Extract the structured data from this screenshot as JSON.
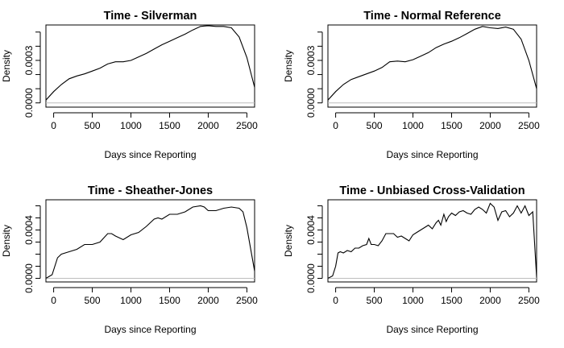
{
  "chart_data": [
    {
      "type": "line",
      "title": "Time - Silverman",
      "xlabel": "Days since Reporting",
      "ylabel": "Density",
      "xlim": [
        -100,
        2600
      ],
      "ylim": [
        -3e-05,
        0.00055
      ],
      "x_ticks": [
        0,
        500,
        1000,
        1500,
        2000,
        2500
      ],
      "y_ticks": [
        0,
        0.0001,
        0.0002,
        0.0003,
        0.0004,
        0.0005
      ],
      "y_tick_labels": [
        "0.0000",
        "",
        "",
        "0.0003",
        "",
        ""
      ],
      "series": [
        {
          "x": [
            -100,
            0,
            100,
            200,
            300,
            400,
            500,
            600,
            700,
            800,
            900,
            1000,
            1100,
            1200,
            1300,
            1400,
            1500,
            1600,
            1700,
            1800,
            1900,
            2000,
            2100,
            2200,
            2300,
            2400,
            2500,
            2600
          ],
          "y": [
            2e-05,
            8e-05,
            0.00013,
            0.00017,
            0.00019,
            0.000205,
            0.000225,
            0.000245,
            0.000275,
            0.00029,
            0.00029,
            0.0003,
            0.000325,
            0.00035,
            0.00038,
            0.00041,
            0.000435,
            0.00046,
            0.000485,
            0.000515,
            0.00054,
            0.000545,
            0.00054,
            0.00054,
            0.00053,
            0.000465,
            0.00032,
            0.00011
          ]
        }
      ]
    },
    {
      "type": "line",
      "title": "Time - Normal Reference",
      "xlabel": "Days since Reporting",
      "ylabel": "Density",
      "xlim": [
        -100,
        2600
      ],
      "ylim": [
        -3e-05,
        0.00055
      ],
      "x_ticks": [
        0,
        500,
        1000,
        1500,
        2000,
        2500
      ],
      "y_ticks": [
        0,
        0.0001,
        0.0002,
        0.0003,
        0.0004,
        0.0005
      ],
      "y_tick_labels": [
        "0.0000",
        "",
        "",
        "0.0003",
        "",
        ""
      ],
      "series": [
        {
          "x": [
            -100,
            0,
            100,
            200,
            300,
            400,
            500,
            600,
            700,
            800,
            900,
            1000,
            1100,
            1200,
            1300,
            1400,
            1500,
            1600,
            1700,
            1800,
            1900,
            2000,
            2100,
            2200,
            2300,
            2400,
            2500,
            2600
          ],
          "y": [
            2e-05,
            8e-05,
            0.00013,
            0.000165,
            0.000185,
            0.000205,
            0.000225,
            0.00025,
            0.00029,
            0.000295,
            0.00029,
            0.000305,
            0.00033,
            0.000355,
            0.00039,
            0.000415,
            0.000435,
            0.00046,
            0.00049,
            0.00052,
            0.00054,
            0.00053,
            0.000525,
            0.000535,
            0.00052,
            0.00045,
            0.0003,
            0.0001
          ]
        }
      ]
    },
    {
      "type": "line",
      "title": "Time - Sheather-Jones",
      "xlabel": "Days since Reporting",
      "ylabel": "Density",
      "xlim": [
        -100,
        2600
      ],
      "ylim": [
        -3e-05,
        0.00065
      ],
      "x_ticks": [
        0,
        500,
        1000,
        1500,
        2000,
        2500
      ],
      "y_ticks": [
        0,
        0.0001,
        0.0002,
        0.0003,
        0.0004,
        0.0005,
        0.0006
      ],
      "y_tick_labels": [
        "0.0000",
        "",
        "",
        "",
        "0.0004",
        "",
        ""
      ],
      "series": [
        {
          "x": [
            -100,
            -20,
            50,
            100,
            200,
            300,
            400,
            500,
            600,
            700,
            750,
            800,
            900,
            1000,
            1100,
            1200,
            1300,
            1350,
            1400,
            1500,
            1600,
            1700,
            1800,
            1900,
            1950,
            2000,
            2100,
            2200,
            2300,
            2400,
            2450,
            2500,
            2600
          ],
          "y": [
            0,
            3e-05,
            0.00017,
            0.0002,
            0.00022,
            0.00024,
            0.00028,
            0.00028,
            0.0003,
            0.00037,
            0.00037,
            0.00035,
            0.00032,
            0.00036,
            0.00038,
            0.00043,
            0.00049,
            0.0005,
            0.00049,
            0.00053,
            0.00053,
            0.00055,
            0.00059,
            0.0006,
            0.00059,
            0.00056,
            0.00056,
            0.00058,
            0.00059,
            0.00058,
            0.00055,
            0.00042,
            6e-05
          ]
        }
      ]
    },
    {
      "type": "line",
      "title": "Time - Unbiased Cross-Validation",
      "xlabel": "Days since Reporting",
      "ylabel": "Density",
      "xlim": [
        -100,
        2600
      ],
      "ylim": [
        -3e-05,
        0.00065
      ],
      "x_ticks": [
        0,
        500,
        1000,
        1500,
        2000,
        2500
      ],
      "y_ticks": [
        0,
        0.0001,
        0.0002,
        0.0003,
        0.0004,
        0.0005,
        0.0006
      ],
      "y_tick_labels": [
        "0.0000",
        "",
        "",
        "",
        "0.0004",
        "",
        ""
      ],
      "series": [
        {
          "x": [
            -100,
            -40,
            0,
            30,
            60,
            100,
            150,
            200,
            250,
            300,
            350,
            400,
            430,
            460,
            500,
            550,
            600,
            650,
            700,
            750,
            800,
            850,
            900,
            950,
            1000,
            1050,
            1100,
            1150,
            1200,
            1250,
            1300,
            1330,
            1360,
            1400,
            1430,
            1460,
            1500,
            1550,
            1600,
            1650,
            1700,
            1750,
            1800,
            1850,
            1900,
            1950,
            2000,
            2050,
            2100,
            2150,
            2200,
            2250,
            2300,
            2350,
            2400,
            2450,
            2500,
            2550,
            2600
          ],
          "y": [
            0,
            2e-05,
            0.0001,
            0.00021,
            0.00022,
            0.00021,
            0.00023,
            0.00022,
            0.00025,
            0.00025,
            0.00027,
            0.00028,
            0.00033,
            0.00028,
            0.00028,
            0.00027,
            0.00031,
            0.00037,
            0.00037,
            0.00037,
            0.00034,
            0.00035,
            0.00033,
            0.00031,
            0.00036,
            0.00038,
            0.0004,
            0.00042,
            0.00044,
            0.00041,
            0.00046,
            0.00048,
            0.00044,
            0.00053,
            0.00047,
            0.00051,
            0.00054,
            0.00052,
            0.00055,
            0.00056,
            0.00054,
            0.00053,
            0.00057,
            0.00059,
            0.00057,
            0.00054,
            0.00062,
            0.00059,
            0.00048,
            0.00055,
            0.00056,
            0.00051,
            0.00054,
            0.0006,
            0.00054,
            0.0006,
            0.00052,
            0.00055,
            1e-05
          ]
        }
      ]
    }
  ]
}
